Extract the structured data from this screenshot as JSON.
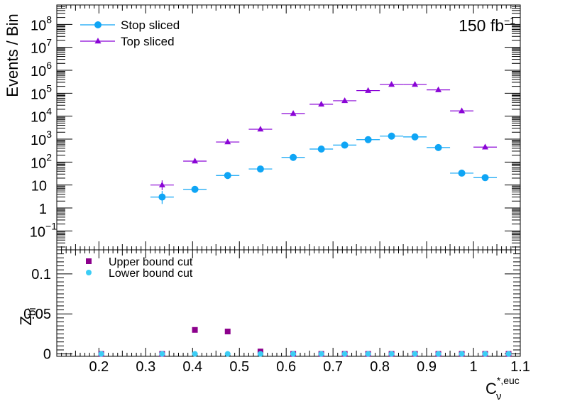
{
  "chart_data": [
    {
      "type": "scatter",
      "panel": "top",
      "yscale": "log",
      "ylabel": "Events / Bin",
      "ylim": [
        0.015,
        700000000
      ],
      "xlim": [
        0.11,
        1.1
      ],
      "annotation": {
        "text": "150 fb",
        "superscript": "−1"
      },
      "legend": {
        "placement": "top-left"
      },
      "y_tick_labels": [
        {
          "v": 0.1,
          "base": "10",
          "exp": "−1"
        },
        {
          "v": 1,
          "base": "1",
          "exp": ""
        },
        {
          "v": 10,
          "base": "10",
          "exp": ""
        },
        {
          "v": 100,
          "base": "10",
          "exp": "2"
        },
        {
          "v": 1000,
          "base": "10",
          "exp": "3"
        },
        {
          "v": 10000,
          "base": "10",
          "exp": "4"
        },
        {
          "v": 100000,
          "base": "10",
          "exp": "5"
        },
        {
          "v": 1000000,
          "base": "10",
          "exp": "6"
        },
        {
          "v": 10000000,
          "base": "10",
          "exp": "7"
        },
        {
          "v": 100000000,
          "base": "10",
          "exp": "8"
        }
      ],
      "series": [
        {
          "name": "Stop sliced",
          "marker": "circle",
          "color": "#0fa5f5",
          "points": [
            {
              "x": 0.335,
              "y": 3,
              "xerr": 0.025,
              "ylo": 1.5,
              "yhi": 5.5
            },
            {
              "x": 0.405,
              "y": 6.5,
              "xerr": 0.025
            },
            {
              "x": 0.475,
              "y": 26,
              "xerr": 0.025
            },
            {
              "x": 0.545,
              "y": 50,
              "xerr": 0.025
            },
            {
              "x": 0.615,
              "y": 160,
              "xerr": 0.025
            },
            {
              "x": 0.675,
              "y": 370,
              "xerr": 0.025
            },
            {
              "x": 0.725,
              "y": 550,
              "xerr": 0.025
            },
            {
              "x": 0.775,
              "y": 950,
              "xerr": 0.025
            },
            {
              "x": 0.825,
              "y": 1350,
              "xerr": 0.025
            },
            {
              "x": 0.875,
              "y": 1250,
              "xerr": 0.025
            },
            {
              "x": 0.925,
              "y": 430,
              "xerr": 0.025
            },
            {
              "x": 0.975,
              "y": 33,
              "xerr": 0.025
            },
            {
              "x": 1.025,
              "y": 21,
              "xerr": 0.025
            }
          ]
        },
        {
          "name": "Top sliced",
          "marker": "triangle",
          "color": "#8a05d6",
          "points": [
            {
              "x": 0.335,
              "y": 10,
              "xerr": 0.025,
              "ylo": 6,
              "yhi": 16
            },
            {
              "x": 0.405,
              "y": 110,
              "xerr": 0.025
            },
            {
              "x": 0.475,
              "y": 750,
              "xerr": 0.025
            },
            {
              "x": 0.545,
              "y": 2700,
              "xerr": 0.025
            },
            {
              "x": 0.615,
              "y": 13000,
              "xerr": 0.025
            },
            {
              "x": 0.675,
              "y": 33000,
              "xerr": 0.025
            },
            {
              "x": 0.725,
              "y": 47000,
              "xerr": 0.025
            },
            {
              "x": 0.775,
              "y": 130000,
              "xerr": 0.025
            },
            {
              "x": 0.825,
              "y": 240000,
              "xerr": 0.025
            },
            {
              "x": 0.875,
              "y": 240000,
              "xerr": 0.025
            },
            {
              "x": 0.925,
              "y": 140000,
              "xerr": 0.025
            },
            {
              "x": 0.975,
              "y": 17000,
              "xerr": 0.025
            },
            {
              "x": 1.025,
              "y": 450,
              "xerr": 0.025
            }
          ]
        }
      ]
    },
    {
      "type": "scatter",
      "panel": "bottom",
      "ylabel": {
        "base": "Z",
        "sub": "bi"
      },
      "xlabel": {
        "base": "C",
        "sub": "ν",
        "sup": "*,euc"
      },
      "xlim": [
        0.11,
        1.1
      ],
      "ylim": [
        -0.003,
        0.13
      ],
      "legend": {
        "placement": "top-left"
      },
      "x_ticks": [
        0.2,
        0.3,
        0.4,
        0.5,
        0.6,
        0.7,
        0.8,
        0.9,
        1,
        1.1
      ],
      "x_tick_labels": [
        "0.2",
        "0.3",
        "0.4",
        "0.5",
        "0.6",
        "0.7",
        "0.8",
        "0.9",
        "1",
        "1.1"
      ],
      "y_ticks": [
        0,
        0.05,
        0.1
      ],
      "y_tick_labels": [
        "0",
        "0.05",
        "0.1"
      ],
      "series": [
        {
          "name": "Upper bound cut",
          "marker": "square",
          "color": "#8c008c",
          "x": [
            0.205,
            0.335,
            0.405,
            0.475,
            0.545,
            0.615,
            0.675,
            0.725,
            0.775,
            0.825,
            0.875,
            0.925,
            0.975,
            1.025,
            1.075
          ],
          "y": [
            0,
            0,
            0.03,
            0.028,
            0.003,
            0,
            0,
            0,
            0,
            0,
            0,
            0,
            0,
            0,
            0
          ]
        },
        {
          "name": "Lower bound cut",
          "marker": "circle",
          "color": "#3ccdf5",
          "x": [
            0.205,
            0.335,
            0.405,
            0.475,
            0.545,
            0.615,
            0.675,
            0.725,
            0.775,
            0.825,
            0.875,
            0.925,
            0.975,
            1.025,
            1.075
          ],
          "y": [
            0,
            0,
            0,
            0,
            0,
            0,
            0,
            0,
            0,
            0,
            0,
            0,
            0,
            0,
            0
          ]
        }
      ]
    }
  ]
}
